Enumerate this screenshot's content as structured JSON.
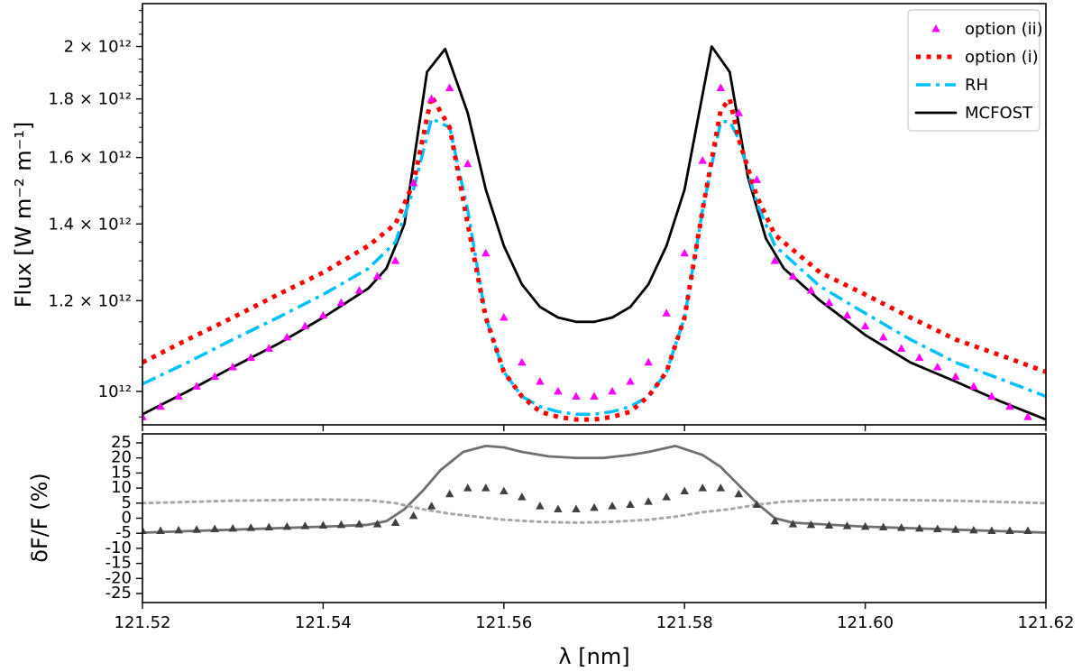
{
  "chart_data": [
    {
      "type": "line",
      "panel": "top",
      "xlabel": "",
      "ylabel": "Flux [W m⁻² m⁻¹]",
      "yscale": "log",
      "xlim": [
        121.52,
        121.62
      ],
      "ylim": [
        935000000000.0,
        2180000000000.0
      ],
      "yticks": [
        {
          "value": 1000000000000.0,
          "label": "10¹²"
        },
        {
          "value": 1200000000000.0,
          "label": "1.2 × 10¹²"
        },
        {
          "value": 1400000000000.0,
          "label": "1.4 × 10¹²"
        },
        {
          "value": 1600000000000.0,
          "label": "1.6 × 10¹²"
        },
        {
          "value": 1800000000000.0,
          "label": "1.8 × 10¹²"
        },
        {
          "value": 2000000000000.0,
          "label": "2 × 10¹²"
        }
      ],
      "legend_position": "top-right",
      "series": [
        {
          "name": "option (ii)",
          "style": "triangle-markers",
          "color": "#ff00ff",
          "x": [
            121.52,
            121.522,
            121.524,
            121.526,
            121.528,
            121.53,
            121.532,
            121.534,
            121.536,
            121.538,
            121.54,
            121.542,
            121.544,
            121.546,
            121.548,
            121.55,
            121.552,
            121.554,
            121.556,
            121.558,
            121.56,
            121.562,
            121.564,
            121.566,
            121.568,
            121.57,
            121.572,
            121.574,
            121.576,
            121.578,
            121.58,
            121.582,
            121.584,
            121.586,
            121.588,
            121.59,
            121.592,
            121.594,
            121.596,
            121.598,
            121.6,
            121.602,
            121.604,
            121.606,
            121.608,
            121.61,
            121.612,
            121.614,
            121.616,
            121.618
          ],
          "y": [
            950000000000.0,
            970000000000.0,
            990000000000.0,
            1010000000000.0,
            1030000000000.0,
            1050000000000.0,
            1070000000000.0,
            1090000000000.0,
            1115000000000.0,
            1140000000000.0,
            1165000000000.0,
            1195000000000.0,
            1225000000000.0,
            1260000000000.0,
            1300000000000.0,
            1520000000000.0,
            1800000000000.0,
            1840000000000.0,
            1580000000000.0,
            1320000000000.0,
            1160000000000.0,
            1060000000000.0,
            1020000000000.0,
            1000000000000.0,
            990000000000.0,
            990000000000.0,
            1000000000000.0,
            1020000000000.0,
            1060000000000.0,
            1170000000000.0,
            1320000000000.0,
            1590000000000.0,
            1840000000000.0,
            1750000000000.0,
            1530000000000.0,
            1300000000000.0,
            1260000000000.0,
            1225000000000.0,
            1195000000000.0,
            1165000000000.0,
            1140000000000.0,
            1115000000000.0,
            1090000000000.0,
            1070000000000.0,
            1050000000000.0,
            1030000000000.0,
            1010000000000.0,
            990000000000.0,
            970000000000.0,
            950000000000.0
          ]
        },
        {
          "name": "option (i)",
          "style": "dotted",
          "color": "#ff0000",
          "x": [
            121.52,
            121.525,
            121.53,
            121.535,
            121.54,
            121.545,
            121.548,
            121.55,
            121.552,
            121.554,
            121.556,
            121.558,
            121.56,
            121.562,
            121.564,
            121.566,
            121.568,
            121.57,
            121.572,
            121.574,
            121.576,
            121.578,
            121.58,
            121.582,
            121.584,
            121.585,
            121.586,
            121.588,
            121.59,
            121.595,
            121.6,
            121.605,
            121.61,
            121.615,
            121.62
          ],
          "y": [
            1060000000000.0,
            1110000000000.0,
            1160000000000.0,
            1215000000000.0,
            1270000000000.0,
            1340000000000.0,
            1400000000000.0,
            1520000000000.0,
            1810000000000.0,
            1700000000000.0,
            1400000000000.0,
            1160000000000.0,
            1040000000000.0,
            990000000000.0,
            960000000000.0,
            950000000000.0,
            945000000000.0,
            945000000000.0,
            950000000000.0,
            960000000000.0,
            990000000000.0,
            1040000000000.0,
            1160000000000.0,
            1440000000000.0,
            1760000000000.0,
            1800000000000.0,
            1660000000000.0,
            1480000000000.0,
            1370000000000.0,
            1270000000000.0,
            1215000000000.0,
            1160000000000.0,
            1110000000000.0,
            1075000000000.0,
            1040000000000.0
          ]
        },
        {
          "name": "RH",
          "style": "dash-dot",
          "color": "#00bfff",
          "x": [
            121.52,
            121.525,
            121.53,
            121.535,
            121.54,
            121.545,
            121.548,
            121.55,
            121.552,
            121.554,
            121.556,
            121.558,
            121.56,
            121.562,
            121.564,
            121.566,
            121.568,
            121.57,
            121.572,
            121.574,
            121.576,
            121.578,
            121.58,
            121.582,
            121.584,
            121.585,
            121.586,
            121.588,
            121.59,
            121.595,
            121.6,
            121.605,
            121.61,
            121.615,
            121.62
          ],
          "y": [
            1015000000000.0,
            1060000000000.0,
            1110000000000.0,
            1160000000000.0,
            1215000000000.0,
            1280000000000.0,
            1350000000000.0,
            1500000000000.0,
            1730000000000.0,
            1700000000000.0,
            1440000000000.0,
            1160000000000.0,
            1040000000000.0,
            990000000000.0,
            970000000000.0,
            960000000000.0,
            955000000000.0,
            955000000000.0,
            960000000000.0,
            970000000000.0,
            990000000000.0,
            1040000000000.0,
            1160000000000.0,
            1440000000000.0,
            1720000000000.0,
            1720000000000.0,
            1660000000000.0,
            1460000000000.0,
            1340000000000.0,
            1235000000000.0,
            1170000000000.0,
            1110000000000.0,
            1060000000000.0,
            1025000000000.0,
            990000000000.0
          ]
        },
        {
          "name": "MCFOST",
          "style": "solid",
          "color": "#000000",
          "x": [
            121.52,
            121.525,
            121.53,
            121.535,
            121.54,
            121.545,
            121.547,
            121.549,
            121.5515,
            121.5535,
            121.556,
            121.558,
            121.56,
            121.562,
            121.564,
            121.566,
            121.568,
            121.57,
            121.572,
            121.574,
            121.576,
            121.578,
            121.58,
            121.583,
            121.585,
            121.587,
            121.589,
            121.591,
            121.595,
            121.6,
            121.605,
            121.61,
            121.615,
            121.62
          ],
          "y": [
            955000000000.0,
            1000000000000.0,
            1050000000000.0,
            1100000000000.0,
            1160000000000.0,
            1230000000000.0,
            1280000000000.0,
            1400000000000.0,
            1900000000000.0,
            1990000000000.0,
            1750000000000.0,
            1500000000000.0,
            1340000000000.0,
            1240000000000.0,
            1185000000000.0,
            1160000000000.0,
            1150000000000.0,
            1150000000000.0,
            1160000000000.0,
            1185000000000.0,
            1240000000000.0,
            1340000000000.0,
            1500000000000.0,
            2000000000000.0,
            1900000000000.0,
            1540000000000.0,
            1360000000000.0,
            1280000000000.0,
            1200000000000.0,
            1120000000000.0,
            1060000000000.0,
            1020000000000.0,
            980000000000.0,
            945000000000.0
          ]
        }
      ]
    },
    {
      "type": "line",
      "panel": "bottom",
      "xlabel": "λ [nm]",
      "ylabel": "δF/F (%)",
      "xlim": [
        121.52,
        121.62
      ],
      "ylim": [
        -28,
        28
      ],
      "xticks": [
        121.52,
        121.54,
        121.56,
        121.58,
        121.6,
        121.62
      ],
      "xticklabels": [
        "121.52",
        "121.54",
        "121.56",
        "121.58",
        "121.60",
        "121.62"
      ],
      "yticks": [
        -25,
        -20,
        -15,
        -10,
        -5,
        0,
        5,
        10,
        15,
        20,
        25
      ],
      "series": [
        {
          "name": "solid grey",
          "style": "solid",
          "color": "#707070",
          "x": [
            121.52,
            121.53,
            121.54,
            121.545,
            121.547,
            121.549,
            121.551,
            121.553,
            121.5555,
            121.558,
            121.56,
            121.562,
            121.565,
            121.568,
            121.571,
            121.574,
            121.576,
            121.579,
            121.582,
            121.584,
            121.586,
            121.588,
            121.59,
            121.592,
            121.6,
            121.61,
            121.62
          ],
          "y": [
            -4.8,
            -3.8,
            -2.8,
            -2.2,
            -1,
            3,
            9,
            16,
            22,
            24,
            23.5,
            22,
            20.5,
            20,
            20,
            21,
            22,
            24,
            21,
            17,
            11,
            5,
            0,
            -1.5,
            -2.8,
            -3.8,
            -4.8
          ]
        },
        {
          "name": "dotted grey",
          "style": "dotted",
          "color": "#a8a8a8",
          "x": [
            121.52,
            121.53,
            121.54,
            121.545,
            121.548,
            121.551,
            121.554,
            121.557,
            121.56,
            121.564,
            121.568,
            121.572,
            121.576,
            121.579,
            121.582,
            121.585,
            121.588,
            121.591,
            121.595,
            121.6,
            121.61,
            121.62
          ],
          "y": [
            5,
            5.8,
            6.2,
            6,
            5,
            3,
            1.5,
            0.5,
            -0.5,
            -1.2,
            -1.5,
            -1.2,
            -0.5,
            0.5,
            2,
            3,
            4.5,
            5.5,
            6,
            6.2,
            5.8,
            5
          ]
        },
        {
          "name": "triangles",
          "style": "triangle-markers",
          "color": "#404040",
          "x": [
            121.52,
            121.522,
            121.524,
            121.526,
            121.528,
            121.53,
            121.532,
            121.534,
            121.536,
            121.538,
            121.54,
            121.542,
            121.544,
            121.546,
            121.548,
            121.55,
            121.552,
            121.554,
            121.556,
            121.558,
            121.56,
            121.562,
            121.564,
            121.566,
            121.568,
            121.57,
            121.572,
            121.574,
            121.576,
            121.578,
            121.58,
            121.582,
            121.584,
            121.586,
            121.588,
            121.59,
            121.592,
            121.594,
            121.596,
            121.598,
            121.6,
            121.602,
            121.604,
            121.606,
            121.608,
            121.61,
            121.612,
            121.614,
            121.616,
            121.618
          ],
          "y": [
            -4.2,
            -4.2,
            -4.0,
            -3.8,
            -3.6,
            -3.4,
            -3.2,
            -3.0,
            -2.8,
            -2.6,
            -2.4,
            -2.2,
            -2.0,
            -2.0,
            -1.5,
            0.8,
            4.0,
            8,
            10,
            10,
            9,
            7,
            4,
            3,
            3,
            3.5,
            4,
            4.5,
            5.5,
            7,
            9,
            10,
            10,
            8,
            4.5,
            -1,
            -2,
            -2.2,
            -2.4,
            -2.6,
            -2.8,
            -3.0,
            -3.2,
            -3.4,
            -3.6,
            -3.8,
            -4.0,
            -4.2,
            -4.2,
            -4.2
          ]
        }
      ]
    }
  ]
}
